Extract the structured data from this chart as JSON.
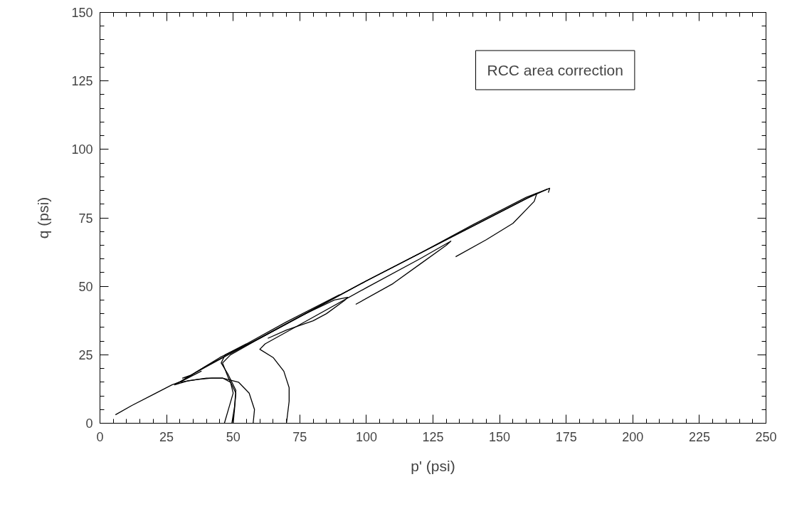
{
  "chart_data": {
    "type": "line",
    "xlabel": "p' (psi)",
    "ylabel": "q (psi)",
    "annotations": [
      "RCC area correction"
    ],
    "xlim": [
      0,
      250
    ],
    "ylim": [
      0,
      150
    ],
    "xticks": [
      0,
      25,
      50,
      75,
      100,
      125,
      150,
      175,
      200,
      225,
      250
    ],
    "yticks": [
      0,
      25,
      50,
      75,
      100,
      125,
      150
    ],
    "grid": false,
    "marker": "none",
    "line_style": "solid",
    "series": [
      {
        "color": "#000000",
        "x": [
          5.8,
          12,
          20,
          27,
          31,
          36,
          38,
          35,
          31,
          34,
          40,
          50,
          60,
          80,
          100,
          120,
          140,
          160,
          168.8,
          168.3
        ],
        "values": [
          3.1,
          6.5,
          10.5,
          14,
          15.5,
          18,
          19,
          17.5,
          16.5,
          17.5,
          21,
          26,
          31,
          41.5,
          52,
          62,
          72.5,
          82.5,
          85.8,
          84.2
        ]
      },
      {
        "color": "#000000",
        "x": [
          70,
          71,
          71,
          69,
          65,
          60,
          62,
          75,
          100,
          120,
          131.7,
          130,
          120,
          110,
          96
        ],
        "values": [
          0,
          8,
          13,
          19,
          24,
          27,
          29,
          36,
          49.5,
          60,
          66.5,
          65,
          58,
          51,
          43.4
        ]
      },
      {
        "color": "#000000",
        "x": [
          50,
          50.5,
          51,
          48,
          46,
          49,
          60,
          75,
          88,
          93,
          92,
          85,
          80,
          70,
          63
        ],
        "values": [
          0,
          5,
          11,
          17,
          22,
          25,
          31,
          39,
          45,
          46,
          45,
          40,
          37.4,
          34,
          31
        ]
      },
      {
        "color": "#000000",
        "x": [
          57.5,
          58,
          56,
          52,
          46,
          40,
          33,
          28,
          35,
          50,
          75,
          100,
          125,
          150,
          164,
          163,
          155,
          145,
          133.5
        ],
        "values": [
          0,
          5,
          11,
          15,
          16.5,
          16.5,
          15.5,
          14,
          18,
          26,
          39,
          52,
          64.5,
          77,
          84,
          81,
          73,
          67,
          60.8
        ]
      },
      {
        "color": "#000000",
        "x": [
          46.7,
          48.5,
          50,
          49,
          46,
          42,
          37,
          30,
          35,
          45,
          60,
          80,
          100,
          130,
          160,
          168
        ],
        "values": [
          0,
          6,
          11,
          15,
          16.5,
          16.5,
          16,
          15,
          18,
          24,
          31,
          41.5,
          52,
          67,
          82,
          85.5
        ]
      },
      {
        "color": "#000000",
        "x": [
          49.5,
          50.5,
          51,
          48,
          45.5,
          47,
          55,
          70,
          90
        ],
        "values": [
          0,
          6,
          12,
          18,
          22,
          25,
          29,
          37,
          47
        ]
      }
    ]
  }
}
